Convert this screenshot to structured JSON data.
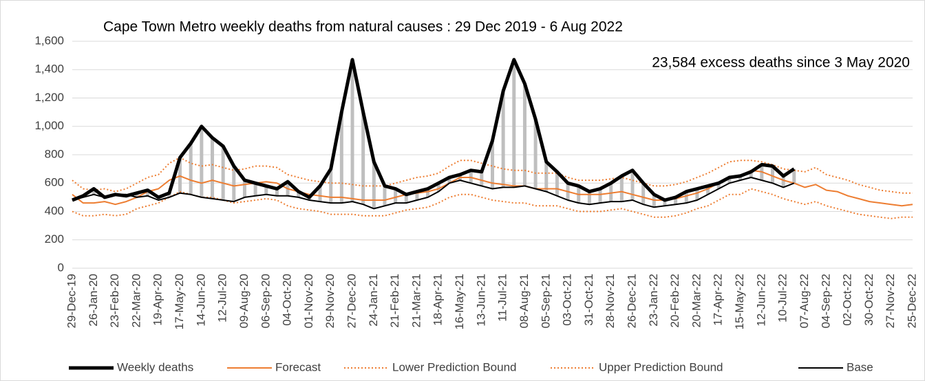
{
  "chart_data": {
    "type": "line",
    "title": "Cape Town Metro weekly deaths from natural causes : 29 Dec 2019 - 6 Aug 2022",
    "annotation": "23,584 excess deaths since 3 May 2020",
    "categories": [
      "29-Dec-19",
      null,
      "26-Jan-20",
      null,
      "23-Feb-20",
      null,
      "22-Mar-20",
      null,
      "19-Apr-20",
      null,
      "17-May-20",
      null,
      "14-Jun-20",
      null,
      "12-Jul-20",
      null,
      "09-Aug-20",
      null,
      "06-Sep-20",
      null,
      "04-Oct-20",
      null,
      "01-Nov-20",
      null,
      "29-Nov-20",
      null,
      "27-Dec-20",
      null,
      "24-Jan-21",
      null,
      "21-Feb-21",
      null,
      "21-Mar-21",
      null,
      "18-Apr-21",
      null,
      "16-May-21",
      null,
      "13-Jun-21",
      null,
      "11-Jul-21",
      null,
      "08-Aug-21",
      null,
      "05-Sep-21",
      null,
      "03-Oct-21",
      null,
      "31-Oct-21",
      null,
      "28-Nov-21",
      null,
      "26-Dec-21",
      null,
      "23-Jan-22",
      null,
      "20-Feb-22",
      null,
      "20-Mar-22",
      null,
      "17-Apr-22",
      null,
      "15-May-22",
      null,
      "12-Jun-22",
      null,
      "10-Jul-22",
      null,
      "07-Aug-22",
      null,
      "04-Sep-22",
      null,
      "02-Oct-22",
      null,
      "30-Oct-22",
      null,
      "27-Nov-22",
      null,
      "25-Dec-22"
    ],
    "series": [
      {
        "name": "Weekly deaths",
        "color": "#000000",
        "style": "thick",
        "values": [
          480,
          510,
          560,
          500,
          520,
          510,
          530,
          550,
          500,
          530,
          780,
          880,
          1000,
          920,
          860,
          720,
          620,
          600,
          580,
          560,
          610,
          540,
          500,
          580,
          700,
          1100,
          1470,
          1100,
          750,
          580,
          560,
          520,
          540,
          560,
          600,
          640,
          660,
          690,
          680,
          900,
          1250,
          1470,
          1300,
          1050,
          750,
          680,
          600,
          580,
          540,
          560,
          600,
          650,
          690,
          600,
          520,
          480,
          500,
          540,
          560,
          580,
          600,
          640,
          650,
          680,
          730,
          720,
          650,
          700,
          null,
          null,
          null,
          null,
          null,
          null,
          null,
          null,
          null,
          null,
          null
        ]
      },
      {
        "name": "Forecast",
        "color": "#ed7d31",
        "style": "solid",
        "values": [
          520,
          460,
          460,
          470,
          450,
          470,
          500,
          540,
          560,
          620,
          650,
          620,
          600,
          620,
          600,
          580,
          590,
          600,
          610,
          600,
          560,
          540,
          520,
          510,
          500,
          500,
          490,
          480,
          480,
          480,
          500,
          520,
          530,
          540,
          560,
          600,
          640,
          640,
          620,
          600,
          590,
          580,
          580,
          560,
          560,
          560,
          540,
          520,
          520,
          520,
          530,
          540,
          520,
          500,
          480,
          480,
          490,
          510,
          530,
          560,
          600,
          640,
          650,
          690,
          680,
          650,
          620,
          600,
          570,
          590,
          550,
          540,
          510,
          490,
          470,
          460,
          450,
          440,
          450
        ]
      },
      {
        "name": "Lower Prediction Bound",
        "color": "#ed7d31",
        "style": "dotted",
        "values": [
          400,
          370,
          370,
          380,
          370,
          380,
          420,
          440,
          460,
          500,
          540,
          520,
          500,
          500,
          480,
          460,
          470,
          480,
          490,
          480,
          440,
          420,
          410,
          400,
          380,
          380,
          380,
          370,
          370,
          370,
          390,
          410,
          420,
          430,
          460,
          500,
          520,
          520,
          500,
          480,
          470,
          460,
          460,
          440,
          440,
          440,
          420,
          400,
          400,
          400,
          410,
          420,
          400,
          380,
          360,
          360,
          370,
          390,
          420,
          440,
          480,
          520,
          520,
          560,
          540,
          520,
          490,
          470,
          450,
          470,
          440,
          420,
          400,
          380,
          370,
          360,
          350,
          360,
          360
        ]
      },
      {
        "name": "Upper Prediction Bound",
        "color": "#ed7d31",
        "style": "dotted",
        "values": [
          620,
          560,
          550,
          560,
          540,
          560,
          600,
          640,
          660,
          740,
          780,
          740,
          720,
          730,
          710,
          690,
          700,
          720,
          720,
          710,
          660,
          640,
          620,
          610,
          600,
          600,
          590,
          580,
          580,
          580,
          600,
          620,
          640,
          650,
          670,
          720,
          760,
          760,
          740,
          720,
          700,
          690,
          690,
          670,
          670,
          670,
          640,
          620,
          620,
          620,
          630,
          640,
          620,
          600,
          580,
          580,
          590,
          610,
          640,
          670,
          710,
          750,
          760,
          760,
          750,
          730,
          700,
          690,
          680,
          710,
          660,
          640,
          620,
          590,
          570,
          550,
          540,
          530,
          530
        ]
      },
      {
        "name": "Base",
        "color": "#000000",
        "style": "solid",
        "values": [
          480,
          500,
          520,
          500,
          520,
          520,
          500,
          510,
          480,
          500,
          530,
          520,
          500,
          490,
          480,
          470,
          500,
          510,
          520,
          510,
          510,
          500,
          480,
          470,
          460,
          460,
          470,
          450,
          420,
          440,
          460,
          460,
          480,
          500,
          540,
          600,
          620,
          600,
          580,
          560,
          570,
          570,
          580,
          560,
          540,
          510,
          480,
          460,
          450,
          460,
          470,
          470,
          480,
          450,
          430,
          440,
          450,
          460,
          480,
          520,
          560,
          600,
          620,
          640,
          620,
          600,
          570,
          600,
          null,
          null,
          null,
          null,
          null,
          null,
          null,
          null,
          null,
          null,
          null
        ]
      }
    ],
    "ylim": [
      0,
      1600
    ],
    "yticks": [
      0,
      200,
      400,
      600,
      800,
      {
        "value": 1000,
        "label": "1,000"
      },
      {
        "value": 1200,
        "label": "1,200"
      },
      {
        "value": 1400,
        "label": "1,400"
      },
      {
        "value": 1600,
        "label": "1,600"
      }
    ],
    "grid": true,
    "legend": "bottom",
    "excess_fill": "#bfbfbf"
  }
}
